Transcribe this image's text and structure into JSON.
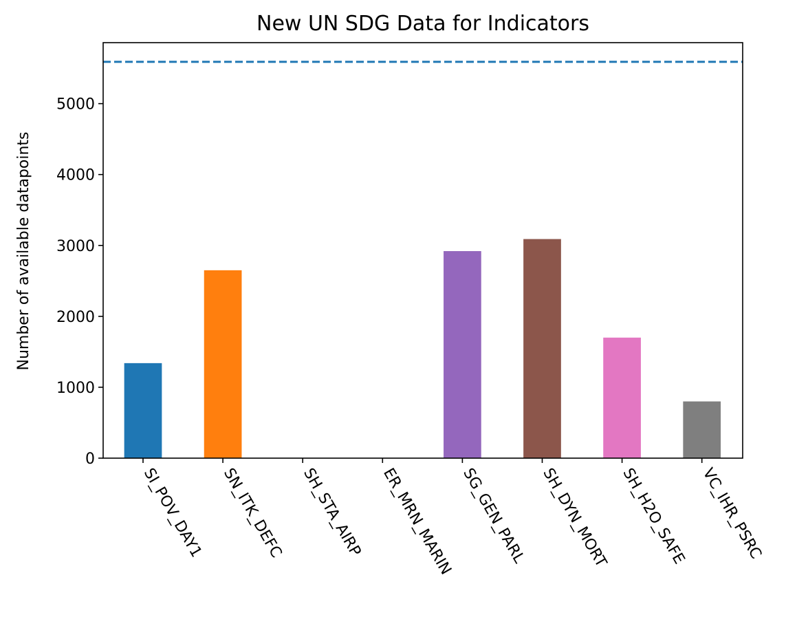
{
  "chart_data": {
    "type": "bar",
    "title": "New UN SDG Data for Indicators",
    "xlabel": "",
    "ylabel": "Number of available datapoints",
    "categories": [
      "SI_POV_DAY1",
      "SN_ITK_DEFC",
      "SH_STA_AIRP",
      "ER_MRN_MARIN",
      "SG_GEN_PARL",
      "SH_DYN_MORT",
      "SH_H2O_SAFE",
      "VC_IHR_PSRC"
    ],
    "values": [
      1340,
      2650,
      0,
      0,
      2920,
      3090,
      1700,
      800
    ],
    "colors": [
      "#1f77b4",
      "#ff7f0e",
      "#2ca02c",
      "#d62728",
      "#9467bd",
      "#8c564b",
      "#e377c2",
      "#7f7f7f"
    ],
    "ylim": [
      0,
      5860
    ],
    "yticks": [
      0,
      1000,
      2000,
      3000,
      4000,
      5000
    ],
    "reference_line": {
      "value": 5590,
      "style": "dashed",
      "color": "#1f77b4"
    },
    "grid": false,
    "legend": "none"
  }
}
